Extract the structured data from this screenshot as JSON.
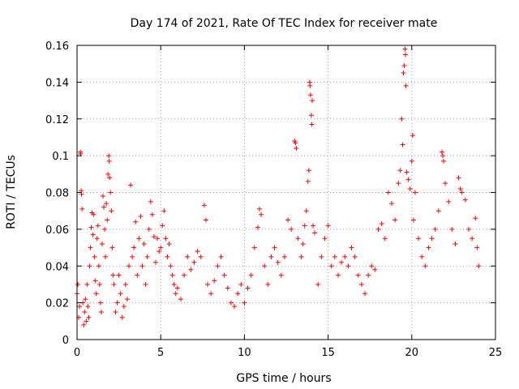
{
  "chart_data": {
    "type": "scatter",
    "title": "Day 174 of 2021, Rate Of TEC Index for receiver mate",
    "xlabel": "GPS time / hours",
    "ylabel": "ROTI / TECUs",
    "xlim": [
      0,
      25
    ],
    "ylim": [
      0,
      0.16
    ],
    "xticks": [
      0,
      5,
      10,
      15,
      20,
      25
    ],
    "yticks": [
      0,
      0.02,
      0.04,
      0.06,
      0.08,
      0.1,
      0.12,
      0.14,
      0.16
    ],
    "xtick_labels": [
      "0",
      "5",
      "10",
      "15",
      "20",
      "25"
    ],
    "ytick_labels": [
      "0",
      "0.02",
      "0.04",
      "0.06",
      "0.08",
      "0.1",
      "0.12",
      "0.14",
      "0.16"
    ],
    "grid": true,
    "marker": "+",
    "color": "#ff0000",
    "series": [
      {
        "name": "ROTI",
        "description_note": "dense scatter of ROTI values from 0 to 24 hours",
        "points": [
          [
            0.0,
            0.025
          ],
          [
            0.05,
            0.03
          ],
          [
            0.1,
            0.012
          ],
          [
            0.15,
            0.018
          ],
          [
            0.2,
            0.102
          ],
          [
            0.22,
            0.101
          ],
          [
            0.25,
            0.081
          ],
          [
            0.27,
            0.079
          ],
          [
            0.3,
            0.071
          ],
          [
            0.35,
            0.02
          ],
          [
            0.4,
            0.008
          ],
          [
            0.45,
            0.015
          ],
          [
            0.5,
            0.022
          ],
          [
            0.55,
            0.01
          ],
          [
            0.6,
            0.03
          ],
          [
            0.65,
            0.018
          ],
          [
            0.7,
            0.012
          ],
          [
            0.75,
            0.04
          ],
          [
            0.8,
            0.05
          ],
          [
            0.85,
            0.061
          ],
          [
            0.9,
            0.069
          ],
          [
            0.95,
            0.057
          ],
          [
            1.0,
            0.068
          ],
          [
            1.05,
            0.045
          ],
          [
            1.1,
            0.032
          ],
          [
            1.15,
            0.025
          ],
          [
            1.2,
            0.055
          ],
          [
            1.25,
            0.062
          ],
          [
            1.3,
            0.04
          ],
          [
            1.35,
            0.03
          ],
          [
            1.4,
            0.02
          ],
          [
            1.45,
            0.015
          ],
          [
            1.5,
            0.052
          ],
          [
            1.55,
            0.078
          ],
          [
            1.6,
            0.072
          ],
          [
            1.65,
            0.06
          ],
          [
            1.7,
            0.045
          ],
          [
            1.75,
            0.074
          ],
          [
            1.8,
            0.065
          ],
          [
            1.85,
            0.09
          ],
          [
            1.9,
            0.1
          ],
          [
            1.92,
            0.097
          ],
          [
            1.95,
            0.088
          ],
          [
            2.0,
            0.08
          ],
          [
            2.05,
            0.07
          ],
          [
            2.1,
            0.05
          ],
          [
            2.15,
            0.035
          ],
          [
            2.2,
            0.03
          ],
          [
            2.3,
            0.015
          ],
          [
            2.4,
            0.02
          ],
          [
            2.5,
            0.035
          ],
          [
            2.6,
            0.025
          ],
          [
            2.7,
            0.012
          ],
          [
            2.8,
            0.018
          ],
          [
            2.9,
            0.03
          ],
          [
            3.0,
            0.022
          ],
          [
            3.1,
            0.04
          ],
          [
            3.2,
            0.084
          ],
          [
            3.3,
            0.045
          ],
          [
            3.4,
            0.05
          ],
          [
            3.5,
            0.064
          ],
          [
            3.6,
            0.035
          ],
          [
            3.7,
            0.055
          ],
          [
            3.8,
            0.067
          ],
          [
            3.9,
            0.04
          ],
          [
            4.0,
            0.052
          ],
          [
            4.1,
            0.03
          ],
          [
            4.2,
            0.045
          ],
          [
            4.3,
            0.06
          ],
          [
            4.4,
            0.075
          ],
          [
            4.5,
            0.068
          ],
          [
            4.6,
            0.056
          ],
          [
            4.7,
            0.042
          ],
          [
            4.8,
            0.055
          ],
          [
            4.9,
            0.048
          ],
          [
            5.0,
            0.05
          ],
          [
            5.1,
            0.062
          ],
          [
            5.2,
            0.07
          ],
          [
            5.3,
            0.055
          ],
          [
            5.4,
            0.045
          ],
          [
            5.5,
            0.052
          ],
          [
            5.6,
            0.04
          ],
          [
            5.7,
            0.035
          ],
          [
            5.8,
            0.03
          ],
          [
            5.9,
            0.025
          ],
          [
            6.0,
            0.028
          ],
          [
            6.2,
            0.022
          ],
          [
            6.4,
            0.035
          ],
          [
            6.6,
            0.045
          ],
          [
            6.8,
            0.038
          ],
          [
            7.0,
            0.042
          ],
          [
            7.2,
            0.048
          ],
          [
            7.4,
            0.045
          ],
          [
            7.6,
            0.073
          ],
          [
            7.7,
            0.065
          ],
          [
            7.8,
            0.03
          ],
          [
            8.0,
            0.025
          ],
          [
            8.2,
            0.032
          ],
          [
            8.4,
            0.04
          ],
          [
            8.6,
            0.045
          ],
          [
            8.8,
            0.035
          ],
          [
            9.0,
            0.028
          ],
          [
            9.2,
            0.02
          ],
          [
            9.4,
            0.018
          ],
          [
            9.6,
            0.025
          ],
          [
            9.8,
            0.03
          ],
          [
            10.0,
            0.02
          ],
          [
            10.2,
            0.028
          ],
          [
            10.4,
            0.035
          ],
          [
            10.6,
            0.05
          ],
          [
            10.8,
            0.061
          ],
          [
            10.9,
            0.071
          ],
          [
            11.0,
            0.068
          ],
          [
            11.2,
            0.04
          ],
          [
            11.4,
            0.03
          ],
          [
            11.6,
            0.045
          ],
          [
            11.8,
            0.05
          ],
          [
            12.0,
            0.042
          ],
          [
            12.2,
            0.035
          ],
          [
            12.4,
            0.045
          ],
          [
            12.6,
            0.065
          ],
          [
            12.8,
            0.06
          ],
          [
            13.0,
            0.108
          ],
          [
            13.05,
            0.107
          ],
          [
            13.1,
            0.104
          ],
          [
            13.2,
            0.055
          ],
          [
            13.4,
            0.045
          ],
          [
            13.5,
            0.052
          ],
          [
            13.6,
            0.062
          ],
          [
            13.7,
            0.07
          ],
          [
            13.8,
            0.086
          ],
          [
            13.85,
            0.092
          ],
          [
            13.9,
            0.14
          ],
          [
            13.92,
            0.138
          ],
          [
            13.95,
            0.133
          ],
          [
            14.0,
            0.122
          ],
          [
            14.02,
            0.117
          ],
          [
            14.05,
            0.13
          ],
          [
            14.1,
            0.062
          ],
          [
            14.2,
            0.058
          ],
          [
            14.4,
            0.03
          ],
          [
            14.6,
            0.045
          ],
          [
            14.8,
            0.055
          ],
          [
            15.0,
            0.062
          ],
          [
            15.2,
            0.04
          ],
          [
            15.4,
            0.045
          ],
          [
            15.6,
            0.035
          ],
          [
            15.8,
            0.042
          ],
          [
            16.0,
            0.045
          ],
          [
            16.2,
            0.04
          ],
          [
            16.4,
            0.05
          ],
          [
            16.6,
            0.045
          ],
          [
            16.8,
            0.035
          ],
          [
            17.0,
            0.03
          ],
          [
            17.2,
            0.025
          ],
          [
            17.4,
            0.035
          ],
          [
            17.6,
            0.04
          ],
          [
            17.8,
            0.038
          ],
          [
            18.0,
            0.06
          ],
          [
            18.2,
            0.063
          ],
          [
            18.4,
            0.055
          ],
          [
            18.6,
            0.08
          ],
          [
            18.8,
            0.074
          ],
          [
            19.0,
            0.065
          ],
          [
            19.2,
            0.085
          ],
          [
            19.3,
            0.092
          ],
          [
            19.4,
            0.12
          ],
          [
            19.45,
            0.106
          ],
          [
            19.5,
            0.145
          ],
          [
            19.55,
            0.149
          ],
          [
            19.6,
            0.158
          ],
          [
            19.62,
            0.155
          ],
          [
            19.65,
            0.138
          ],
          [
            19.7,
            0.091
          ],
          [
            19.8,
            0.087
          ],
          [
            19.9,
            0.082
          ],
          [
            20.0,
            0.097
          ],
          [
            20.05,
            0.111
          ],
          [
            20.1,
            0.065
          ],
          [
            20.2,
            0.08
          ],
          [
            20.4,
            0.055
          ],
          [
            20.6,
            0.045
          ],
          [
            20.8,
            0.04
          ],
          [
            21.0,
            0.05
          ],
          [
            21.2,
            0.055
          ],
          [
            21.4,
            0.06
          ],
          [
            21.6,
            0.07
          ],
          [
            21.8,
            0.102
          ],
          [
            21.85,
            0.1
          ],
          [
            21.9,
            0.097
          ],
          [
            22.0,
            0.085
          ],
          [
            22.2,
            0.075
          ],
          [
            22.4,
            0.06
          ],
          [
            22.6,
            0.052
          ],
          [
            22.8,
            0.088
          ],
          [
            22.9,
            0.082
          ],
          [
            23.0,
            0.08
          ],
          [
            23.2,
            0.076
          ],
          [
            23.4,
            0.06
          ],
          [
            23.6,
            0.055
          ],
          [
            23.8,
            0.066
          ],
          [
            23.9,
            0.05
          ],
          [
            24.0,
            0.04
          ]
        ]
      }
    ]
  }
}
